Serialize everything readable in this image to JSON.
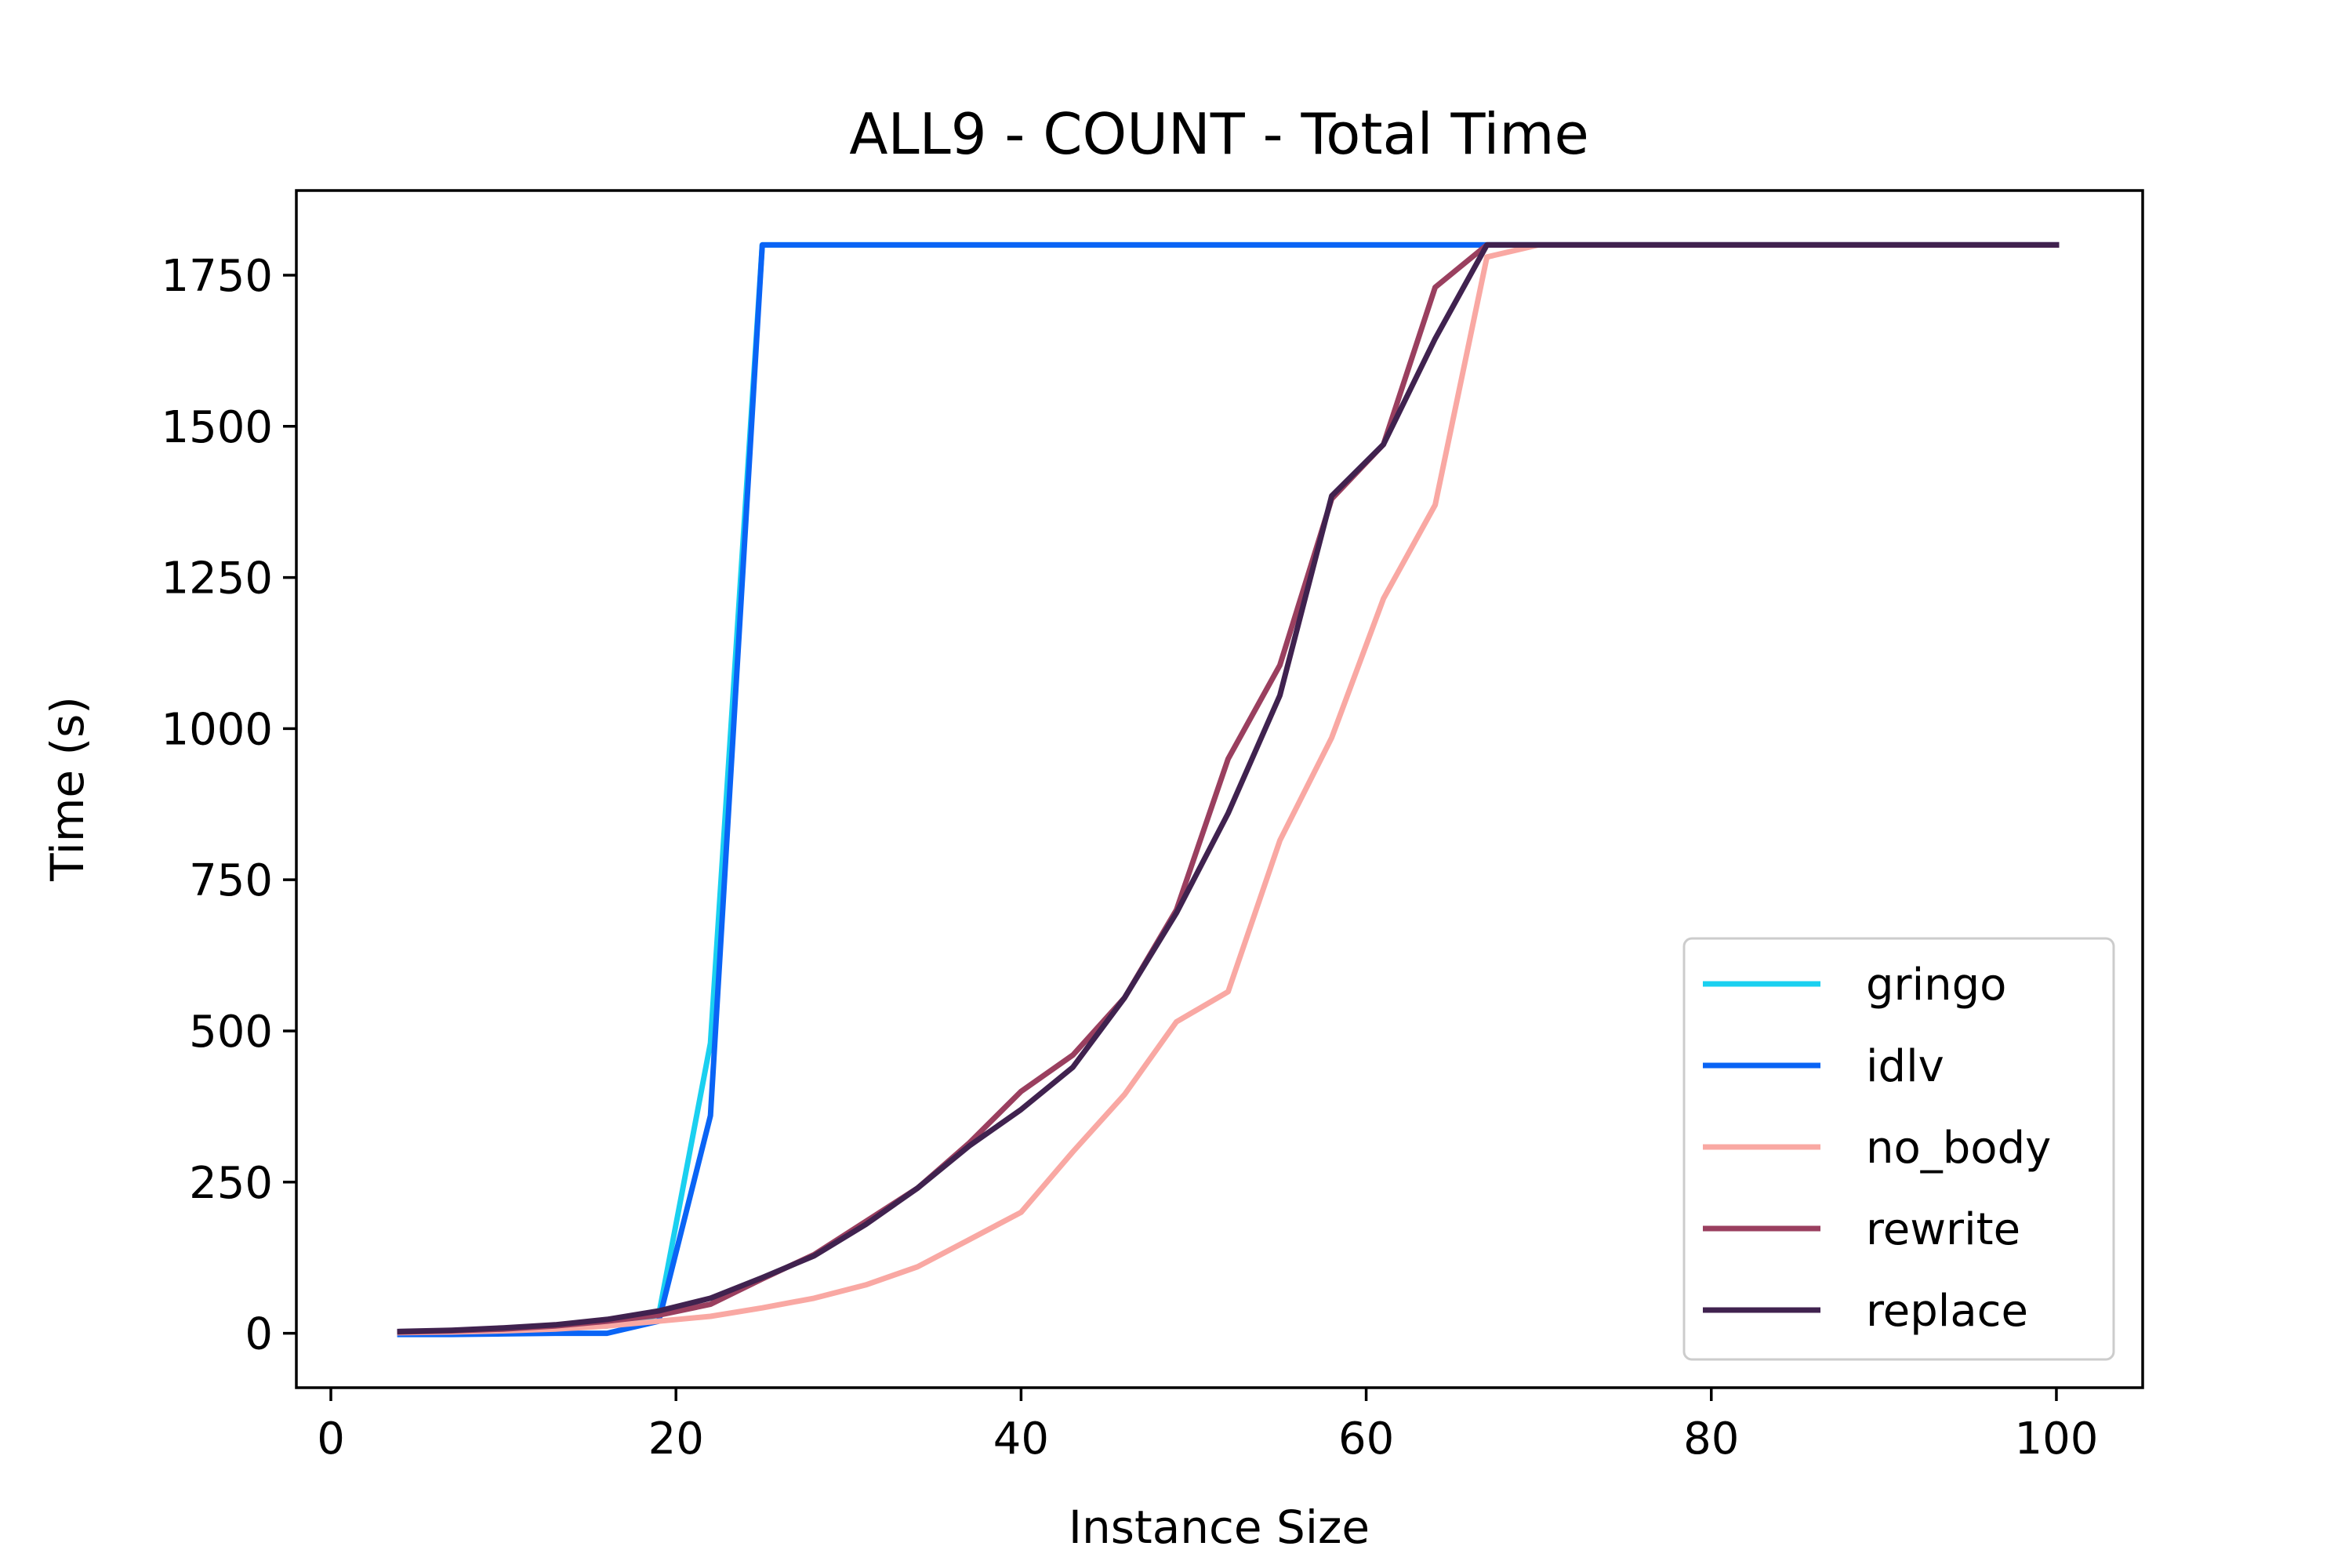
{
  "chart_data": {
    "type": "line",
    "title": "ALL9 - COUNT - Total Time",
    "xlabel": "Instance Size",
    "ylabel": "Time (s)",
    "xlim": [
      -2,
      105
    ],
    "ylim": [
      -90,
      1890
    ],
    "xticks": [
      0,
      20,
      40,
      60,
      80,
      100
    ],
    "yticks": [
      0,
      250,
      500,
      750,
      1000,
      1250,
      1500,
      1750
    ],
    "grid": false,
    "legend_position": "lower right",
    "series": [
      {
        "name": "gringo",
        "color": "#1ad0f0",
        "x": [
          4,
          7,
          10,
          13,
          16,
          19,
          22,
          25,
          28,
          31,
          34,
          37,
          40,
          43,
          46,
          49,
          52,
          55,
          58,
          61,
          64,
          67,
          70,
          100
        ],
        "y": [
          2,
          3,
          5,
          8,
          12,
          30,
          480,
          1800,
          1800,
          1800,
          1800,
          1800,
          1800,
          1800,
          1800,
          1800,
          1800,
          1800,
          1800,
          1800,
          1800,
          1800,
          1800,
          1800
        ]
      },
      {
        "name": "idlv",
        "color": "#0a64f5",
        "x": [
          4,
          7,
          10,
          13,
          16,
          19,
          22,
          25,
          28,
          31,
          34,
          37,
          40,
          43,
          46,
          49,
          52,
          55,
          58,
          61,
          64,
          67,
          70,
          100
        ],
        "y": [
          -2,
          -2,
          -1,
          0,
          0,
          20,
          360,
          1800,
          1800,
          1800,
          1800,
          1800,
          1800,
          1800,
          1800,
          1800,
          1800,
          1800,
          1800,
          1800,
          1800,
          1800,
          1800,
          1800
        ]
      },
      {
        "name": "no_body",
        "color": "#f9a8a3",
        "x": [
          4,
          7,
          10,
          13,
          16,
          19,
          22,
          25,
          28,
          31,
          34,
          37,
          40,
          43,
          46,
          49,
          52,
          55,
          58,
          61,
          64,
          67,
          70,
          100
        ],
        "y": [
          1,
          2,
          4,
          7,
          12,
          20,
          28,
          42,
          58,
          80,
          110,
          155,
          200,
          300,
          395,
          515,
          565,
          815,
          985,
          1215,
          1370,
          1780,
          1800,
          1800
        ]
      },
      {
        "name": "rewrite",
        "color": "#9a3f5f",
        "x": [
          4,
          7,
          10,
          13,
          16,
          19,
          22,
          25,
          28,
          31,
          34,
          37,
          40,
          43,
          46,
          49,
          52,
          55,
          58,
          61,
          64,
          67,
          70,
          100
        ],
        "y": [
          2,
          4,
          7,
          12,
          20,
          30,
          48,
          90,
          130,
          185,
          240,
          315,
          400,
          460,
          555,
          700,
          950,
          1105,
          1380,
          1470,
          1730,
          1800,
          1800,
          1800
        ]
      },
      {
        "name": "replace",
        "color": "#40224f",
        "x": [
          4,
          7,
          10,
          13,
          16,
          19,
          22,
          25,
          28,
          31,
          34,
          37,
          40,
          43,
          46,
          49,
          52,
          55,
          58,
          61,
          64,
          67,
          70,
          100
        ],
        "y": [
          3,
          5,
          9,
          14,
          23,
          37,
          58,
          92,
          128,
          180,
          240,
          310,
          370,
          440,
          555,
          695,
          860,
          1055,
          1385,
          1470,
          1645,
          1800,
          1800,
          1800
        ]
      }
    ]
  }
}
